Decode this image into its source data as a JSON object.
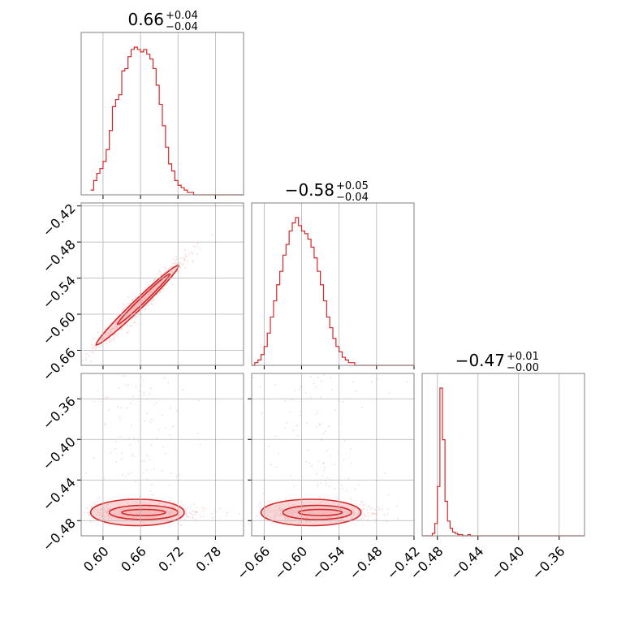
{
  "colors": {
    "series": "#d62728",
    "fill": "#f2b8b9",
    "scatter": "#f3b2b3",
    "grid": "#b0b0b0",
    "frame": "#808080"
  },
  "chart_data": {
    "type": "corner",
    "parameters": 3,
    "grid": true,
    "panels": [
      {
        "id": "hist-0",
        "type": "histogram",
        "row": 0,
        "col": 0,
        "title": {
          "main": "0.66",
          "plus": "+0.04",
          "minus": "−0.04"
        },
        "xlim": [
          0.565,
          0.825
        ],
        "xticks": [
          0.6,
          0.66,
          0.72,
          0.78
        ],
        "bin_edges_start": 0.58,
        "bin_width": 0.005,
        "counts": [
          2,
          6,
          9,
          11,
          14,
          19,
          27,
          37,
          40,
          42,
          52,
          53,
          58,
          61,
          62,
          61,
          60,
          61,
          59,
          57,
          53,
          46,
          38,
          29,
          20,
          13,
          10,
          6,
          4,
          3,
          2,
          1,
          1,
          0,
          0,
          0,
          0,
          0,
          0,
          0,
          0,
          0,
          0,
          0,
          0,
          0,
          0,
          0,
          0,
          0
        ]
      },
      {
        "id": "hist-1",
        "type": "histogram",
        "row": 1,
        "col": 1,
        "title": {
          "main": "−0.58",
          "plus": "+0.05",
          "minus": "−0.04"
        },
        "xlim": [
          -0.68,
          -0.42
        ],
        "xticks": [
          -0.66,
          -0.6,
          -0.54,
          -0.48,
          -0.42
        ],
        "bin_edges_start": -0.68,
        "bin_width": 0.005,
        "counts": [
          0,
          1,
          2,
          4,
          7,
          12,
          18,
          24,
          30,
          35,
          41,
          45,
          50,
          53,
          55,
          52,
          50,
          49,
          47,
          44,
          40,
          35,
          30,
          24,
          18,
          14,
          10,
          7,
          5,
          3,
          2,
          1,
          1,
          0,
          0,
          0,
          0,
          0,
          0,
          0,
          0,
          0,
          0,
          0,
          0,
          0,
          0,
          0,
          0,
          0,
          0,
          0
        ]
      },
      {
        "id": "hist-2",
        "type": "histogram",
        "row": 2,
        "col": 2,
        "title": {
          "main": "−0.47",
          "plus": "+0.01",
          "minus": "−0.00"
        },
        "xlim": [
          -0.495,
          -0.335
        ],
        "xticks": [
          -0.48,
          -0.44,
          -0.4,
          -0.36
        ],
        "bin_edges_start": -0.495,
        "bin_width": 0.0025,
        "counts": [
          0,
          0,
          0,
          0,
          2,
          10,
          40,
          120,
          78,
          28,
          12,
          6,
          3,
          2,
          1,
          1,
          0,
          0,
          1,
          0,
          0,
          0,
          0,
          0,
          0,
          0,
          0,
          0,
          0,
          0,
          0,
          0,
          0,
          0,
          0,
          0,
          0,
          0,
          0,
          0,
          0,
          0,
          0,
          0,
          0,
          0,
          0,
          0,
          0,
          0,
          0,
          0,
          0,
          0,
          0,
          0,
          0,
          0,
          0,
          0,
          0,
          0,
          0,
          0
        ]
      },
      {
        "id": "scatter-1-0",
        "type": "2d-density",
        "row": 1,
        "col": 0,
        "xlim": [
          0.565,
          0.825
        ],
        "ylim": [
          -0.685,
          -0.415
        ],
        "yticks": [
          -0.42,
          -0.48,
          -0.54,
          -0.6,
          -0.66
        ],
        "relation": {
          "slope": 1.0,
          "intercept": -1.24,
          "x_center": 0.66,
          "x_sd": 0.035,
          "y_sd": 0.005
        },
        "contours": [
          {
            "level": "outer",
            "center": [
              0.655,
              -0.585
            ],
            "radii": [
              0.11,
              0.009
            ],
            "angle": "diagonal"
          },
          {
            "level": "inner",
            "center": [
              0.665,
              -0.575
            ],
            "radii": [
              0.07,
              0.005
            ],
            "angle": "diagonal"
          }
        ]
      },
      {
        "id": "scatter-2-0",
        "type": "2d-density",
        "row": 2,
        "col": 0,
        "xlim": [
          0.565,
          0.825
        ],
        "ylim": [
          -0.495,
          -0.335
        ],
        "yticks": [
          -0.36,
          -0.4,
          -0.44,
          -0.48
        ],
        "relation": {
          "x_center": 0.66,
          "x_sd": 0.035,
          "y_center": -0.472,
          "y_sd": 0.004
        },
        "contours": [
          {
            "level": "outer",
            "center": [
              0.655,
              -0.472
            ],
            "radii": [
              0.075,
              0.013
            ]
          },
          {
            "level": "mid",
            "center": [
              0.665,
              -0.472
            ],
            "radii": [
              0.055,
              0.007
            ]
          },
          {
            "level": "inner",
            "center": [
              0.665,
              -0.472
            ],
            "radii": [
              0.035,
              0.003
            ]
          }
        ]
      },
      {
        "id": "scatter-2-1",
        "type": "2d-density",
        "row": 2,
        "col": 1,
        "xlim": [
          -0.68,
          -0.42
        ],
        "ylim": [
          -0.495,
          -0.335
        ],
        "relation": {
          "x_center": -0.58,
          "x_sd": 0.04,
          "y_center": -0.472,
          "y_sd": 0.004
        },
        "contours": [
          {
            "level": "outer",
            "center": [
              -0.585,
              -0.472
            ],
            "radii": [
              0.08,
              0.013
            ]
          },
          {
            "level": "mid",
            "center": [
              -0.575,
              -0.472
            ],
            "radii": [
              0.055,
              0.007
            ]
          },
          {
            "level": "inner",
            "center": [
              -0.57,
              -0.472
            ],
            "radii": [
              0.035,
              0.003
            ]
          }
        ]
      }
    ],
    "tick_label_text": {
      "hist-0-x": [
        "0.60",
        "0.66",
        "0.72",
        "0.78"
      ],
      "hist-1-x": [
        "−0.66",
        "−0.60",
        "−0.54",
        "−0.48",
        "−0.42"
      ],
      "hist-2-x": [
        "−0.48",
        "−0.44",
        "−0.40",
        "−0.36"
      ],
      "scatter-1-0-y": [
        "−0.42",
        "−0.48",
        "−0.54",
        "−0.60",
        "−0.66"
      ],
      "scatter-2-0-y": [
        "−0.36",
        "−0.40",
        "−0.44",
        "−0.48"
      ]
    }
  }
}
